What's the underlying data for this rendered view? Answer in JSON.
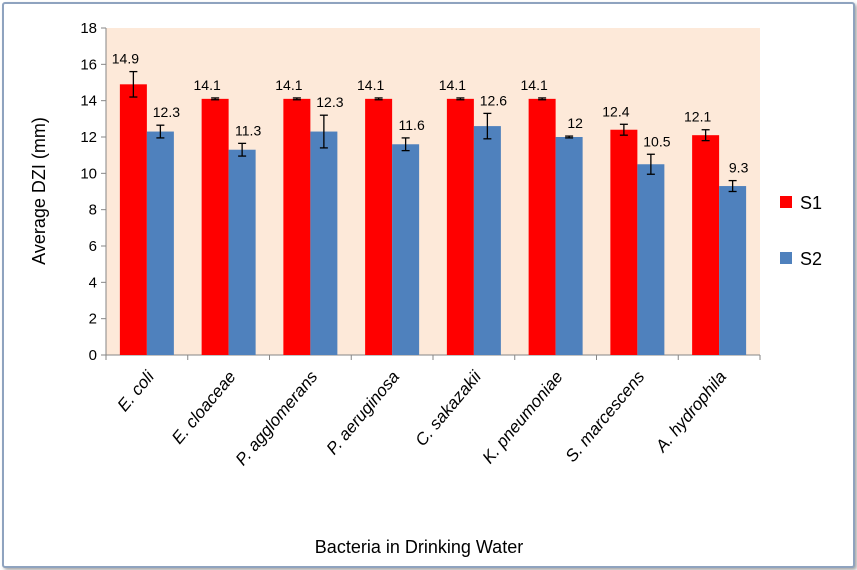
{
  "chart_data": {
    "type": "bar",
    "title": "",
    "xlabel": "Bacteria in Drinking Water",
    "ylabel": "Average DZI (mm)",
    "ylim": [
      0,
      18
    ],
    "yticks": [
      0,
      2,
      4,
      6,
      8,
      10,
      12,
      14,
      16,
      18
    ],
    "categories": [
      "E. coli",
      "E. cloaceae",
      "P. agglomerans",
      "P. aeruginosa",
      "C. sakazakii",
      "K. pneumoniae",
      "S. marcescens",
      "A. hydrophila"
    ],
    "series": [
      {
        "name": "S1",
        "color": "#ff0000",
        "values": [
          14.9,
          14.1,
          14.1,
          14.1,
          14.1,
          14.1,
          12.4,
          12.1
        ],
        "value_labels": [
          "14.9",
          "14.1",
          "14.1",
          "14.1",
          "14.1",
          "14.1",
          "12.4",
          "12.1"
        ],
        "errors": [
          0.7,
          0.05,
          0.05,
          0.05,
          0.05,
          0.05,
          0.3,
          0.3
        ]
      },
      {
        "name": "S2",
        "color": "#4f81bd",
        "values": [
          12.3,
          11.3,
          12.3,
          11.6,
          12.6,
          12.0,
          10.5,
          9.3
        ],
        "value_labels": [
          "12.3",
          "11.3",
          "12.3",
          "11.6",
          "12.6",
          "12",
          "10.5",
          "9.3"
        ],
        "errors": [
          0.35,
          0.35,
          0.9,
          0.35,
          0.7,
          0.05,
          0.55,
          0.3
        ]
      }
    ],
    "plot_background": "#fde9d9",
    "grid": false,
    "legend_position": "right"
  }
}
